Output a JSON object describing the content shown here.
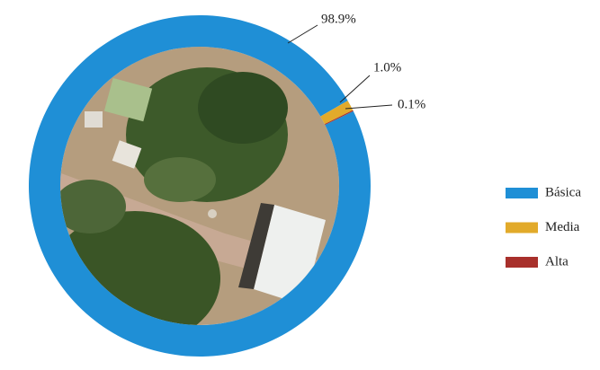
{
  "chart_data": {
    "type": "donut",
    "categories": [
      "Básica",
      "Media",
      "Alta"
    ],
    "values": [
      98.9,
      1.0,
      0.1
    ],
    "value_labels": [
      "98.9%",
      "1.0%",
      "0.1%"
    ],
    "colors": [
      "#1f8fd6",
      "#e2aa2a",
      "#a8302b"
    ],
    "legend": "right"
  }
}
